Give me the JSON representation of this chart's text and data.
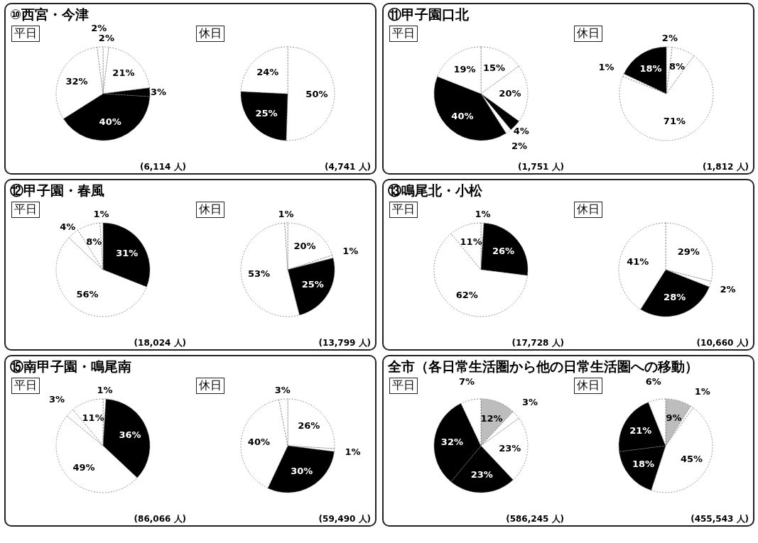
{
  "chart_data": [
    {
      "type": "pie",
      "title": "⑩西宮・今津",
      "subtitle": "平日",
      "categories": [
        null,
        null,
        null,
        null,
        null,
        null
      ],
      "values": [
        2,
        21,
        3,
        40,
        32,
        2
      ],
      "colors": [
        "#ffffff",
        "#ffffff",
        "#000000",
        "#000000",
        "#ffffff",
        "#ffffff"
      ],
      "value_labels": [
        "2%",
        "21%",
        "3%",
        "40%",
        "32%",
        "2%"
      ],
      "annotations": [
        "(6,114 人)"
      ]
    },
    {
      "type": "pie",
      "subtitle": "休日",
      "categories": [
        null,
        null,
        null
      ],
      "values": [
        50,
        25,
        24
      ],
      "colors": [
        "#ffffff",
        "#000000",
        "#ffffff"
      ],
      "value_labels": [
        "50%",
        "25%",
        "24%"
      ],
      "annotations": [
        "(4,741 人)"
      ]
    },
    {
      "type": "pie",
      "title": "⑪甲子園口北",
      "subtitle": "平日",
      "categories": [
        null,
        null,
        null,
        null,
        null,
        null
      ],
      "values": [
        15,
        20,
        4,
        2,
        40,
        19
      ],
      "colors": [
        "#ffffff",
        "#ffffff",
        "#000000",
        "#ffffff",
        "#000000",
        "#ffffff"
      ],
      "value_labels": [
        "15%",
        "20%",
        "4%",
        "2%",
        "40%",
        "19%"
      ],
      "annotations": [
        "(1,751 人)"
      ]
    },
    {
      "type": "pie",
      "subtitle": "休日",
      "categories": [
        null,
        null,
        null,
        null,
        null
      ],
      "values": [
        2,
        8,
        71,
        1,
        18
      ],
      "colors": [
        "#ffffff",
        "#ffffff",
        "#ffffff",
        "#ffffff",
        "#000000"
      ],
      "value_labels": [
        "2%",
        "8%",
        "71%",
        "1%",
        "18%"
      ],
      "annotations": [
        "(1,812 人)"
      ]
    },
    {
      "type": "pie",
      "title": "⑫甲子園・春風",
      "subtitle": "平日",
      "categories": [
        null,
        null,
        null,
        null,
        null
      ],
      "values": [
        31,
        56,
        4,
        8,
        1
      ],
      "colors": [
        "#000000",
        "#ffffff",
        "#ffffff",
        "#ffffff",
        "#ffffff"
      ],
      "value_labels": [
        "31%",
        "56%",
        "4%",
        "8%",
        "1%"
      ],
      "annotations": [
        "(18,024 人)"
      ]
    },
    {
      "type": "pie",
      "subtitle": "休日",
      "categories": [
        null,
        null,
        null,
        null,
        null
      ],
      "values": [
        20,
        1,
        25,
        53,
        1
      ],
      "colors": [
        "#ffffff",
        "#ffffff",
        "#000000",
        "#ffffff",
        "#ffffff"
      ],
      "value_labels": [
        "20%",
        "1%",
        "25%",
        "53%",
        "1%"
      ],
      "annotations": [
        "(13,799 人)"
      ]
    },
    {
      "type": "pie",
      "title": "⑬鳴尾北・小松",
      "subtitle": "平日",
      "categories": [
        null,
        null,
        null,
        null
      ],
      "values": [
        1,
        26,
        62,
        11
      ],
      "colors": [
        "#ffffff",
        "#000000",
        "#ffffff",
        "#ffffff"
      ],
      "value_labels": [
        "1%",
        "26%",
        "62%",
        "11%"
      ],
      "annotations": [
        "(17,728 人)"
      ]
    },
    {
      "type": "pie",
      "subtitle": "休日",
      "categories": [
        null,
        null,
        null,
        null
      ],
      "values": [
        29,
        2,
        28,
        41
      ],
      "colors": [
        "#ffffff",
        "#ffffff",
        "#000000",
        "#ffffff"
      ],
      "value_labels": [
        "29%",
        "2%",
        "28%",
        "41%"
      ],
      "annotations": [
        "(10,660 人)"
      ]
    },
    {
      "type": "pie",
      "title": "⑮南甲子園・鳴尾南",
      "subtitle": "平日",
      "categories": [
        null,
        null,
        null,
        null,
        null
      ],
      "values": [
        1,
        36,
        49,
        3,
        11
      ],
      "colors": [
        "#ffffff",
        "#000000",
        "#ffffff",
        "#ffffff",
        "#ffffff"
      ],
      "value_labels": [
        "1%",
        "36%",
        "49%",
        "3%",
        "11%"
      ],
      "annotations": [
        "(86,066 人)"
      ]
    },
    {
      "type": "pie",
      "subtitle": "休日",
      "categories": [
        null,
        null,
        null,
        null,
        null
      ],
      "values": [
        26,
        1,
        30,
        40,
        3
      ],
      "colors": [
        "#ffffff",
        "#ffffff",
        "#000000",
        "#ffffff",
        "#ffffff"
      ],
      "value_labels": [
        "26%",
        "1%",
        "30%",
        "40%",
        "3%"
      ],
      "annotations": [
        "(59,490 人)"
      ]
    },
    {
      "type": "pie",
      "title": "全市（各日常生活圏から他の日常生活圏への移動）",
      "subtitle": "平日",
      "categories": [
        null,
        null,
        null,
        null,
        null,
        null
      ],
      "values": [
        12,
        3,
        23,
        23,
        32,
        7
      ],
      "colors": [
        "#bdbdbd",
        "#ffffff",
        "#ffffff",
        "#000000",
        "#000000",
        "#ffffff"
      ],
      "value_labels": [
        "12%",
        "3%",
        "23%",
        "23%",
        "32%",
        "7%"
      ],
      "annotations": [
        "(586,245 人)"
      ]
    },
    {
      "type": "pie",
      "subtitle": "休日",
      "categories": [
        null,
        null,
        null,
        null,
        null,
        null
      ],
      "values": [
        9,
        1,
        45,
        18,
        21,
        6
      ],
      "colors": [
        "#bdbdbd",
        "#ffffff",
        "#ffffff",
        "#000000",
        "#000000",
        "#ffffff"
      ],
      "value_labels": [
        "9%",
        "1%",
        "45%",
        "18%",
        "21%",
        "6%"
      ],
      "annotations": [
        "(455,543 人)"
      ]
    }
  ]
}
